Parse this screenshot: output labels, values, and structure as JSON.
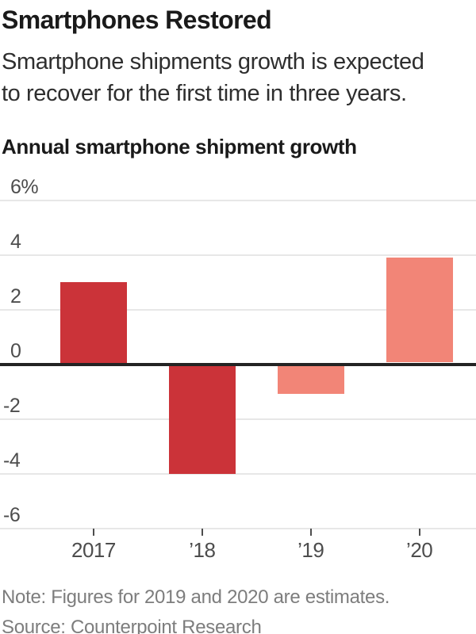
{
  "header": {
    "title": "Smartphones Restored",
    "subtitle_lines": [
      "Smartphone shipments growth is expected",
      "to recover for the first time in three years."
    ]
  },
  "chart": {
    "title": "Annual smartphone shipment growth"
  },
  "chart_data": {
    "type": "bar",
    "title": "Annual smartphone shipment growth",
    "categories": [
      "2017",
      "’18",
      "’19",
      "’20"
    ],
    "values": [
      3.0,
      -4.0,
      -1.1,
      3.9
    ],
    "unit": "%",
    "xlabel": "",
    "ylabel": "",
    "ylim": [
      -6,
      6
    ],
    "yticks": [
      6,
      4,
      2,
      0,
      -2,
      -4,
      -6
    ],
    "ytick_labels": [
      "6%",
      "4",
      "2",
      "0",
      "-2",
      "-4",
      "-6"
    ],
    "grid": true,
    "legend": "none",
    "bar_colors": [
      "#cb3339",
      "#cb3339",
      "#f28577",
      "#f28577"
    ],
    "color_actual": "#cb3339",
    "color_estimate": "#f28577",
    "gridline_color": "#e7e7e7",
    "zero_axis_color": "#232323"
  },
  "footer": {
    "note": "Note: Figures for 2019 and 2020 are estimates.",
    "source": "Source: Counterpoint Research"
  }
}
